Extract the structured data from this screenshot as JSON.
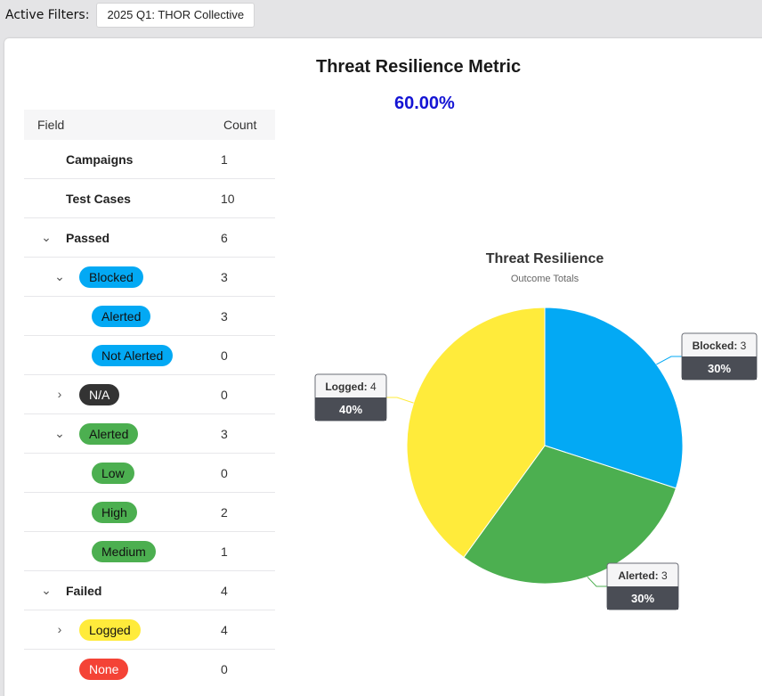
{
  "filters": {
    "label": "Active Filters:",
    "chip": "2025 Q1: THOR Collective"
  },
  "metric": {
    "title": "Threat Resilience Metric",
    "value": "60.00%"
  },
  "table": {
    "header": {
      "field": "Field",
      "count": "Count"
    },
    "rows": [
      {
        "label": "Campaigns",
        "count": "1"
      },
      {
        "label": "Test Cases",
        "count": "10"
      },
      {
        "label": "Passed",
        "count": "6"
      },
      {
        "label": "Blocked",
        "count": "3"
      },
      {
        "label": "Alerted",
        "count": "3"
      },
      {
        "label": "Not Alerted",
        "count": "0"
      },
      {
        "label": "N/A",
        "count": "0"
      },
      {
        "label": "Alerted",
        "count": "3"
      },
      {
        "label": "Low",
        "count": "0"
      },
      {
        "label": "High",
        "count": "2"
      },
      {
        "label": "Medium",
        "count": "1"
      },
      {
        "label": "Failed",
        "count": "4"
      },
      {
        "label": "Logged",
        "count": "4"
      },
      {
        "label": "None",
        "count": "0"
      }
    ]
  },
  "colors": {
    "blue": "#03a9f4",
    "green": "#4caf50",
    "yellow": "#ffeb3b",
    "dark": "#333333",
    "red": "#f44336"
  },
  "chart_data": {
    "type": "pie",
    "title": "Threat Resilience",
    "subtitle": "Outcome Totals",
    "slices": [
      {
        "name": "Blocked",
        "value": 3,
        "percent": "30%",
        "color": "#03a9f4"
      },
      {
        "name": "Alerted",
        "value": 3,
        "percent": "30%",
        "color": "#4caf50"
      },
      {
        "name": "Logged",
        "value": 4,
        "percent": "40%",
        "color": "#ffeb3b"
      }
    ]
  }
}
